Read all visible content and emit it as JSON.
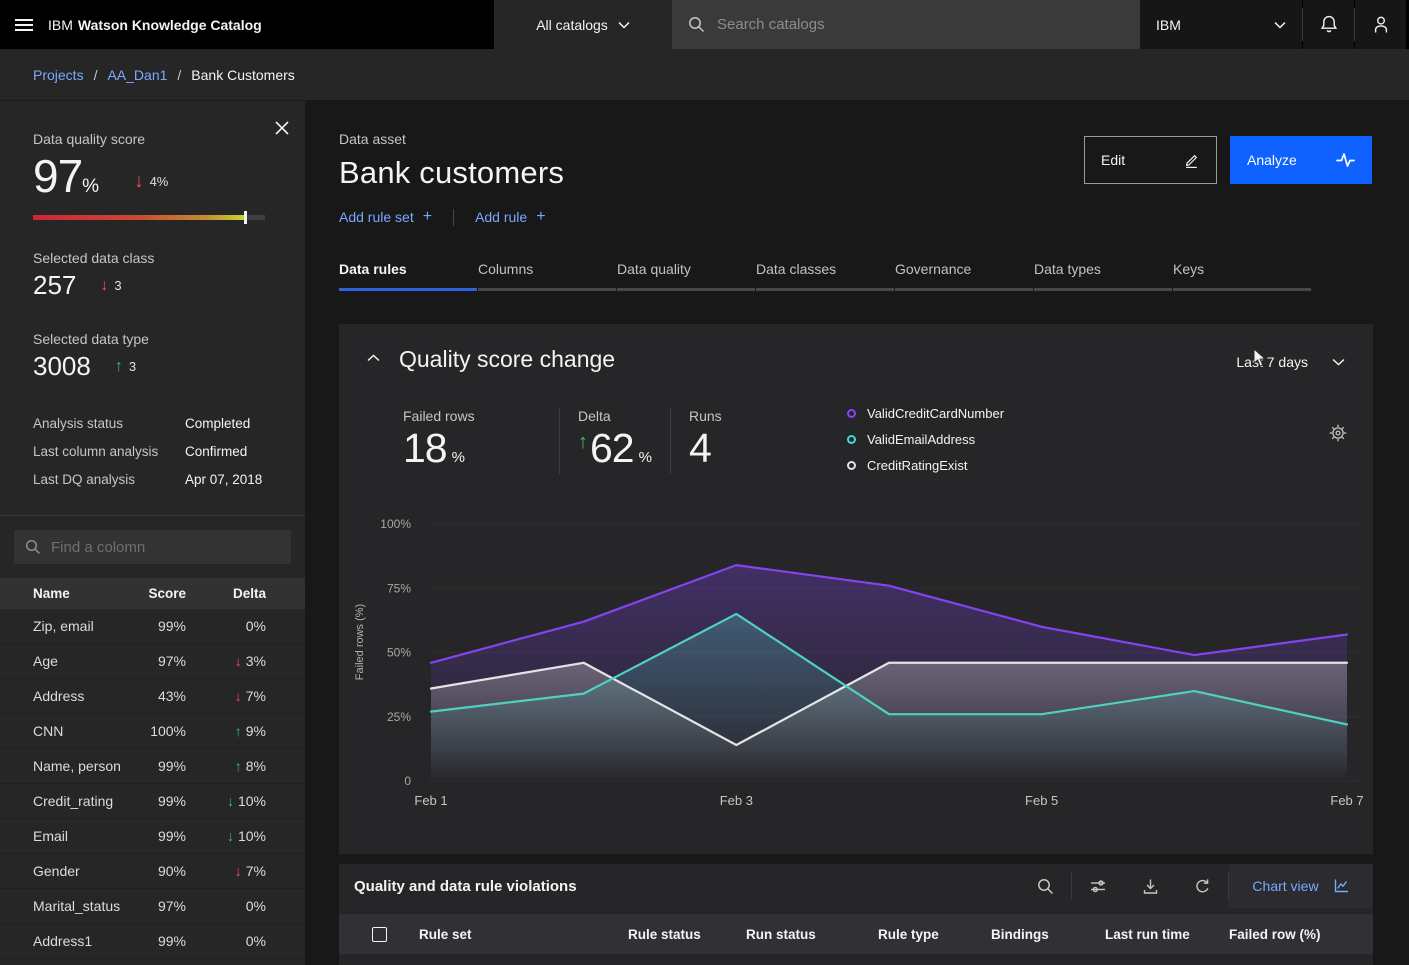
{
  "header": {
    "brand_prefix": "IBM",
    "brand_name": "Watson Knowledge Catalog",
    "catalog_selector": "All catalogs",
    "search_placeholder": "Search catalogs",
    "account_label": "IBM"
  },
  "breadcrumb": [
    "Projects",
    "AA_Dan1",
    "Bank Customers"
  ],
  "icons": {
    "arrow_up": "↑",
    "arrow_down": "↓"
  },
  "colors": {
    "accent_blue": "#0f62fe",
    "link_blue": "#78a9ff",
    "negative_red": "#fa4d56",
    "positive_green": "#42be65",
    "series_purple": "#8344f0",
    "series_teal": "#4fd1bf",
    "series_white": "#e4e4e4"
  },
  "sidebar": {
    "score": {
      "label": "Data quality score",
      "value": "97",
      "unit": "%",
      "delta": "4%",
      "delta_dir": "down",
      "delta_color": "red",
      "gauge_marker_pct": 92
    },
    "data_class": {
      "label": "Selected data class",
      "value": "257",
      "delta": "3",
      "delta_dir": "down",
      "delta_color": "red"
    },
    "data_type": {
      "label": "Selected data type",
      "value": "3008",
      "delta": "3",
      "delta_dir": "up",
      "delta_color": "green"
    },
    "meta": [
      {
        "label": "Analysis status",
        "value": "Completed"
      },
      {
        "label": "Last column analysis",
        "value": "Confirmed"
      },
      {
        "label": "Last DQ analysis",
        "value": "Apr 07, 2018"
      }
    ],
    "search_placeholder": "Find a colomn",
    "table": {
      "headers": [
        "Name",
        "Score",
        "Delta"
      ],
      "rows": [
        {
          "name": "Zip, email",
          "score": "99%",
          "delta": "0%",
          "dir": "none",
          "color": "none"
        },
        {
          "name": "Age",
          "score": "97%",
          "delta": "3%",
          "dir": "down",
          "color": "red"
        },
        {
          "name": "Address",
          "score": "43%",
          "delta": "7%",
          "dir": "down",
          "color": "red"
        },
        {
          "name": "CNN",
          "score": "100%",
          "delta": "9%",
          "dir": "up",
          "color": "green"
        },
        {
          "name": "Name, person",
          "score": "99%",
          "delta": "8%",
          "dir": "up",
          "color": "green"
        },
        {
          "name": "Credit_rating",
          "score": "99%",
          "delta": "10%",
          "dir": "down",
          "color": "green"
        },
        {
          "name": "Email",
          "score": "99%",
          "delta": "10%",
          "dir": "down",
          "color": "green"
        },
        {
          "name": "Gender",
          "score": "90%",
          "delta": "7%",
          "dir": "down",
          "color": "red"
        },
        {
          "name": "Marital_status",
          "score": "97%",
          "delta": "0%",
          "dir": "none",
          "color": "none"
        },
        {
          "name": "Address1",
          "score": "99%",
          "delta": "0%",
          "dir": "none",
          "color": "none"
        }
      ]
    }
  },
  "main": {
    "asset_type": "Data asset",
    "title": "Bank customers",
    "actions": {
      "add_rule_set": "Add rule set",
      "add_rule": "Add rule",
      "edit": "Edit",
      "analyze": "Analyze"
    },
    "tabs": [
      "Data rules",
      "Columns",
      "Data quality",
      "Data classes",
      "Governance",
      "Data types",
      "Keys"
    ],
    "active_tab": "Data rules"
  },
  "chart_card": {
    "title": "Quality score change",
    "range_label": "Last 7 days",
    "stats": [
      {
        "label": "Failed rows",
        "value": "18",
        "unit": "%"
      },
      {
        "label": "Delta",
        "value": "62",
        "unit": "%",
        "dir": "up"
      },
      {
        "label": "Runs",
        "value": "4"
      }
    ],
    "legend": [
      {
        "label": "ValidCreditCardNumber",
        "color": "#8a3ffc"
      },
      {
        "label": "ValidEmailAddress",
        "color": "#3ddbd9"
      },
      {
        "label": "CreditRatingExist",
        "color": "#e2e2ee"
      }
    ]
  },
  "chart_data": {
    "type": "line",
    "title": "Quality score change",
    "x": [
      "Feb 1",
      "Feb 2",
      "Feb 3",
      "Feb 4",
      "Feb 5",
      "Feb 6",
      "Feb 7"
    ],
    "xtick_indices": [
      0,
      2,
      4,
      6
    ],
    "ylabel": "Failed rows (%)",
    "ylim": [
      0,
      100
    ],
    "yticks": [
      {
        "v": 0,
        "label": "0"
      },
      {
        "v": 25,
        "label": "25%"
      },
      {
        "v": 50,
        "label": "50%"
      },
      {
        "v": 75,
        "label": "75%"
      },
      {
        "v": 100,
        "label": "100%"
      }
    ],
    "grid": true,
    "legend_position": "top-right",
    "draw_order": [
      0,
      2,
      1
    ],
    "series": [
      {
        "name": "ValidCreditCardNumber",
        "color": "#8344f0",
        "fill_opacity": 0.3,
        "values": [
          46,
          62,
          84,
          76,
          60,
          49,
          57
        ]
      },
      {
        "name": "ValidEmailAddress",
        "color": "#4fd1bf",
        "fill_opacity": 0.28,
        "values": [
          27,
          34,
          65,
          26,
          26,
          35,
          22
        ]
      },
      {
        "name": "CreditRatingExist",
        "color": "#e4e4e4",
        "fill_opacity": 0.3,
        "values": [
          36,
          46,
          14,
          46,
          46,
          46,
          46
        ]
      }
    ]
  },
  "violations": {
    "title": "Quality and data rule violations",
    "chart_view_label": "Chart view",
    "columns": [
      "Rule set",
      "Rule status",
      "Run status",
      "Rule type",
      "Bindings",
      "Last run time",
      "Failed row (%)"
    ]
  }
}
